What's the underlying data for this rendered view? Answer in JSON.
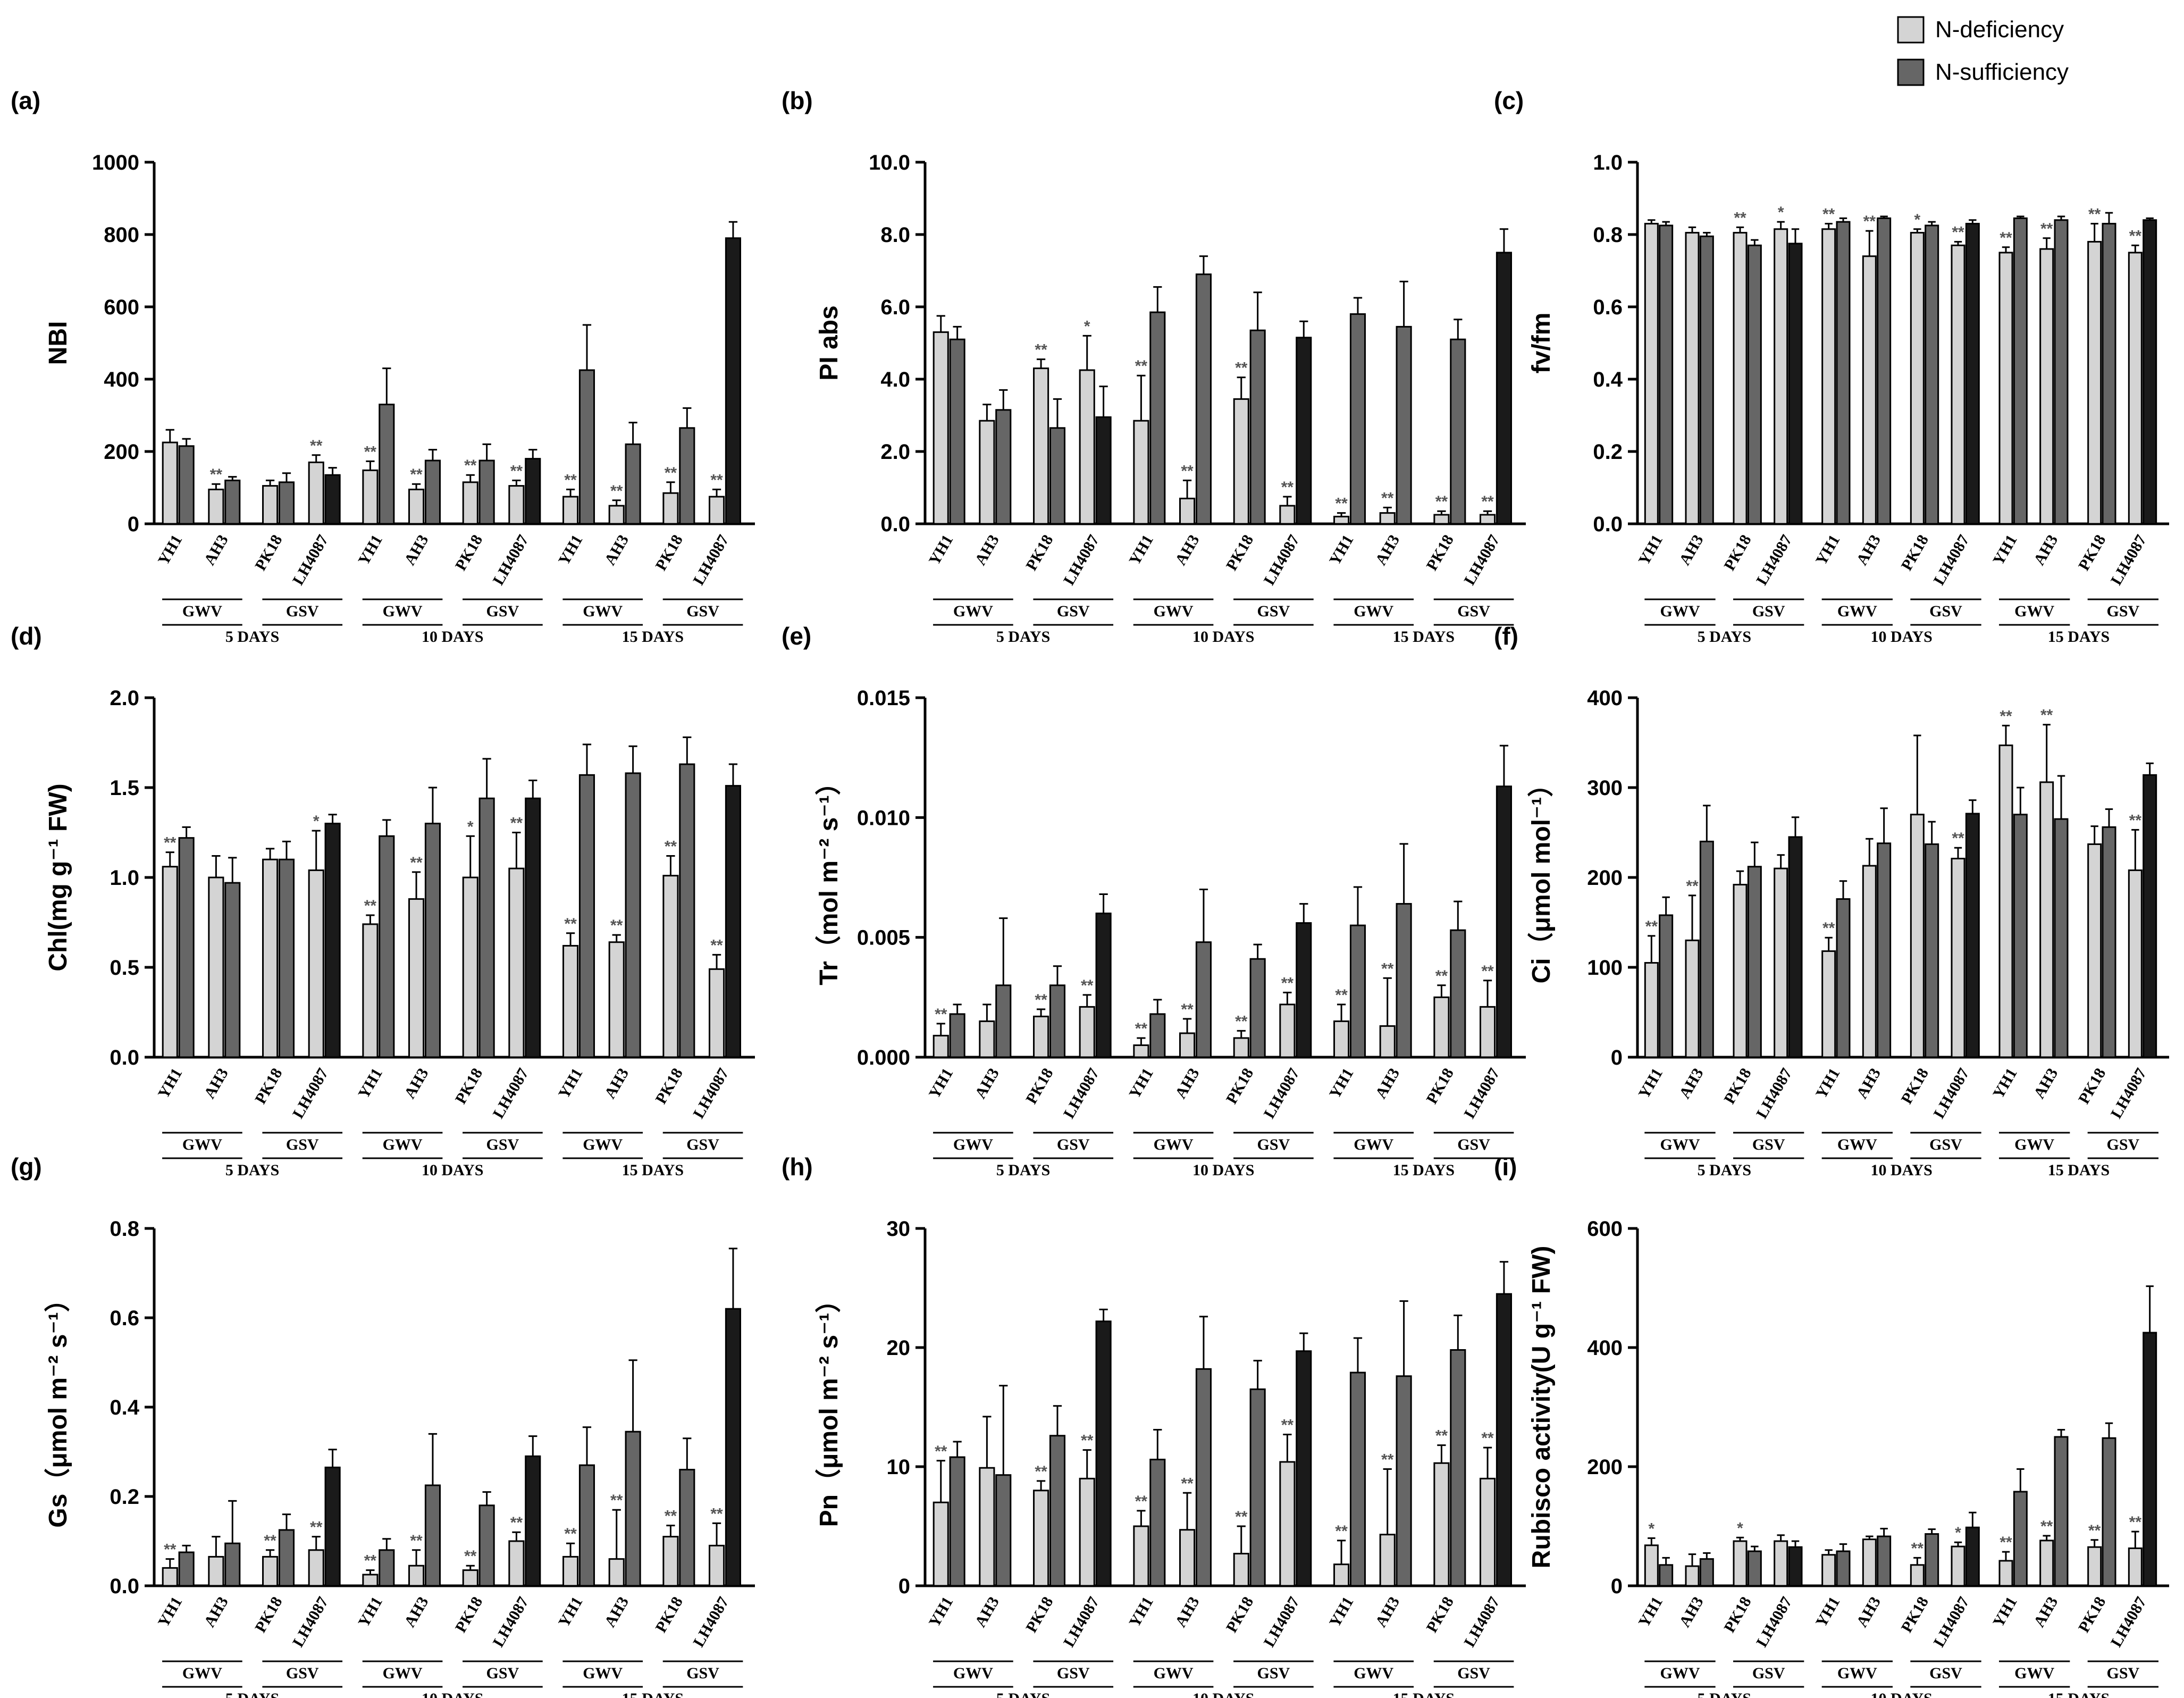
{
  "legend": {
    "n_deficiency": "N-deficiency",
    "n_sufficiency": "N-sufficiency"
  },
  "colors": {
    "n_deficiency": "#d4d4d4",
    "n_sufficiency": "#666666",
    "n_sufficiency_alt": "#1a1a1a"
  },
  "x_axis": {
    "varieties": [
      "YH1",
      "AH3",
      "PK18",
      "LH4087"
    ],
    "groups": [
      "GWV",
      "GSV"
    ],
    "periods": [
      "5 DAYS",
      "10 DAYS",
      "15 DAYS"
    ]
  },
  "chart_data": [
    {
      "panel": "(a)",
      "type": "bar",
      "ylabel": "NBI",
      "ylim": [
        0,
        1000
      ],
      "yticks": [
        "0",
        "200",
        "400",
        "600",
        "800",
        "1000"
      ],
      "n_deficiency": {
        "values": [
          [
            225,
            95,
            105,
            170
          ],
          [
            148,
            95,
            115,
            105
          ],
          [
            75,
            50,
            85,
            75
          ]
        ],
        "errors": [
          [
            35,
            15,
            15,
            20
          ],
          [
            25,
            15,
            20,
            15
          ],
          [
            20,
            15,
            30,
            20
          ]
        ],
        "sig": [
          [
            "",
            "**",
            "",
            "**"
          ],
          [
            "**",
            "**",
            "**",
            "**"
          ],
          [
            "**",
            "**",
            "**",
            "**"
          ]
        ]
      },
      "n_sufficiency": {
        "values": [
          [
            215,
            120,
            115,
            135
          ],
          [
            330,
            175,
            175,
            180
          ],
          [
            425,
            220,
            265,
            790
          ]
        ],
        "errors": [
          [
            20,
            10,
            25,
            20
          ],
          [
            100,
            30,
            45,
            25
          ],
          [
            125,
            60,
            55,
            45
          ]
        ]
      }
    },
    {
      "panel": "(b)",
      "type": "bar",
      "ylabel": "PI abs",
      "ylim": [
        0,
        10
      ],
      "yticks": [
        "0.0",
        "2.0",
        "4.0",
        "6.0",
        "8.0",
        "10.0"
      ],
      "n_deficiency": {
        "values": [
          [
            5.3,
            2.85,
            4.3,
            4.25
          ],
          [
            2.85,
            0.7,
            3.45,
            0.5
          ],
          [
            0.2,
            0.3,
            0.25,
            0.25
          ]
        ],
        "errors": [
          [
            0.45,
            0.45,
            0.25,
            0.95
          ],
          [
            1.25,
            0.5,
            0.6,
            0.25
          ],
          [
            0.1,
            0.15,
            0.1,
            0.1
          ]
        ],
        "sig": [
          [
            "",
            "",
            "**",
            "*"
          ],
          [
            "**",
            "**",
            "**",
            "**"
          ],
          [
            "**",
            "**",
            "**",
            "**"
          ]
        ]
      },
      "n_sufficiency": {
        "values": [
          [
            5.1,
            3.15,
            2.65,
            2.95
          ],
          [
            5.85,
            6.9,
            5.35,
            5.15
          ],
          [
            5.8,
            5.45,
            5.1,
            7.5
          ]
        ],
        "errors": [
          [
            0.35,
            0.55,
            0.8,
            0.85
          ],
          [
            0.7,
            0.5,
            1.05,
            0.45
          ],
          [
            0.45,
            1.25,
            0.55,
            0.65
          ]
        ]
      }
    },
    {
      "panel": "(c)",
      "type": "bar",
      "ylabel": "fv/fm",
      "ylim": [
        0,
        1
      ],
      "yticks": [
        "0.0",
        "0.2",
        "0.4",
        "0.6",
        "0.8",
        "1.0"
      ],
      "n_deficiency": {
        "values": [
          [
            0.83,
            0.805,
            0.805,
            0.815
          ],
          [
            0.815,
            0.74,
            0.805,
            0.77
          ],
          [
            0.75,
            0.76,
            0.78,
            0.75
          ]
        ],
        "errors": [
          [
            0.01,
            0.015,
            0.015,
            0.02
          ],
          [
            0.015,
            0.07,
            0.01,
            0.01
          ],
          [
            0.015,
            0.03,
            0.05,
            0.02
          ]
        ],
        "sig": [
          [
            "",
            "",
            "**",
            "*"
          ],
          [
            "**",
            "**",
            "*",
            "**"
          ],
          [
            "**",
            "**",
            "**",
            "**"
          ]
        ]
      },
      "n_sufficiency": {
        "values": [
          [
            0.825,
            0.795,
            0.77,
            0.775
          ],
          [
            0.835,
            0.845,
            0.825,
            0.83
          ],
          [
            0.845,
            0.84,
            0.83,
            0.84
          ]
        ],
        "errors": [
          [
            0.01,
            0.01,
            0.015,
            0.04
          ],
          [
            0.01,
            0.005,
            0.01,
            0.01
          ],
          [
            0.005,
            0.01,
            0.03,
            0.005
          ]
        ]
      }
    },
    {
      "panel": "(d)",
      "type": "bar",
      "ylabel": "Chl(mg g⁻¹ FW)",
      "ylim": [
        0,
        2
      ],
      "yticks": [
        "0.0",
        "0.5",
        "1.0",
        "1.5",
        "2.0"
      ],
      "n_deficiency": {
        "values": [
          [
            1.06,
            1.0,
            1.1,
            1.04
          ],
          [
            0.74,
            0.88,
            1.0,
            1.05
          ],
          [
            0.62,
            0.64,
            1.01,
            0.49
          ]
        ],
        "errors": [
          [
            0.08,
            0.12,
            0.06,
            0.22
          ],
          [
            0.05,
            0.15,
            0.23,
            0.2
          ],
          [
            0.07,
            0.04,
            0.11,
            0.08
          ]
        ],
        "sig": [
          [
            "**",
            "",
            "",
            "*"
          ],
          [
            "**",
            "**",
            "*",
            "**"
          ],
          [
            "**",
            "**",
            "**",
            "**"
          ]
        ]
      },
      "n_sufficiency": {
        "values": [
          [
            1.22,
            0.97,
            1.1,
            1.3
          ],
          [
            1.23,
            1.3,
            1.44,
            1.44
          ],
          [
            1.57,
            1.58,
            1.63,
            1.51
          ]
        ],
        "errors": [
          [
            0.06,
            0.14,
            0.1,
            0.05
          ],
          [
            0.09,
            0.2,
            0.22,
            0.1
          ],
          [
            0.17,
            0.15,
            0.15,
            0.12
          ]
        ]
      }
    },
    {
      "panel": "(e)",
      "type": "bar",
      "ylabel": "Tr（mol m⁻² s⁻¹）",
      "ylim": [
        0,
        0.015
      ],
      "yticks": [
        "0.000",
        "0.005",
        "0.010",
        "0.015"
      ],
      "n_deficiency": {
        "values": [
          [
            0.0009,
            0.0015,
            0.0017,
            0.0021
          ],
          [
            0.0005,
            0.001,
            0.0008,
            0.0022
          ],
          [
            0.0015,
            0.0013,
            0.0025,
            0.0021
          ]
        ],
        "errors": [
          [
            0.0005,
            0.0007,
            0.0003,
            0.0005
          ],
          [
            0.0003,
            0.0006,
            0.0003,
            0.0005
          ],
          [
            0.0007,
            0.002,
            0.0005,
            0.0011
          ]
        ],
        "sig": [
          [
            "**",
            "",
            "**",
            "**"
          ],
          [
            "**",
            "**",
            "**",
            "**"
          ],
          [
            "**",
            "**",
            "**",
            "**"
          ]
        ]
      },
      "n_sufficiency": {
        "values": [
          [
            0.0018,
            0.003,
            0.003,
            0.006
          ],
          [
            0.0018,
            0.0048,
            0.0041,
            0.0056
          ],
          [
            0.0055,
            0.0064,
            0.0053,
            0.0113
          ]
        ],
        "errors": [
          [
            0.0004,
            0.0028,
            0.0008,
            0.0008
          ],
          [
            0.0006,
            0.0022,
            0.0006,
            0.0008
          ],
          [
            0.0016,
            0.0025,
            0.0012,
            0.0017
          ]
        ]
      }
    },
    {
      "panel": "(f)",
      "type": "bar",
      "ylabel": "Ci（μmol mol⁻¹）",
      "ylim": [
        0,
        400
      ],
      "yticks": [
        "0",
        "100",
        "200",
        "300",
        "400"
      ],
      "n_deficiency": {
        "values": [
          [
            105,
            130,
            192,
            210
          ],
          [
            118,
            213,
            270,
            221
          ],
          [
            347,
            306,
            237,
            208
          ]
        ],
        "errors": [
          [
            30,
            50,
            15,
            15
          ],
          [
            15,
            30,
            88,
            12
          ],
          [
            22,
            64,
            20,
            45
          ]
        ],
        "sig": [
          [
            "**",
            "**",
            "",
            ""
          ],
          [
            "**",
            "",
            "",
            "**"
          ],
          [
            "**",
            "**",
            "",
            "**"
          ]
        ]
      },
      "n_sufficiency": {
        "values": [
          [
            158,
            240,
            212,
            245
          ],
          [
            176,
            238,
            237,
            271
          ],
          [
            270,
            265,
            256,
            314
          ]
        ],
        "errors": [
          [
            20,
            40,
            27,
            22
          ],
          [
            20,
            39,
            25,
            15
          ],
          [
            30,
            48,
            20,
            13
          ]
        ]
      }
    },
    {
      "panel": "(g)",
      "type": "bar",
      "ylabel": "Gs（μmol m⁻² s⁻¹）",
      "ylim": [
        0,
        0.8
      ],
      "yticks": [
        "0.0",
        "0.2",
        "0.4",
        "0.6",
        "0.8"
      ],
      "n_deficiency": {
        "values": [
          [
            0.04,
            0.065,
            0.065,
            0.08
          ],
          [
            0.025,
            0.045,
            0.035,
            0.1
          ],
          [
            0.065,
            0.06,
            0.11,
            0.09
          ]
        ],
        "errors": [
          [
            0.02,
            0.045,
            0.015,
            0.03
          ],
          [
            0.01,
            0.035,
            0.01,
            0.02
          ],
          [
            0.03,
            0.11,
            0.025,
            0.05
          ]
        ],
        "sig": [
          [
            "**",
            "",
            "**",
            "**"
          ],
          [
            "**",
            "**",
            "**",
            "**"
          ],
          [
            "**",
            "**",
            "**",
            "**"
          ]
        ]
      },
      "n_sufficiency": {
        "values": [
          [
            0.075,
            0.095,
            0.125,
            0.265
          ],
          [
            0.08,
            0.225,
            0.18,
            0.29
          ],
          [
            0.27,
            0.345,
            0.26,
            0.62
          ]
        ],
        "errors": [
          [
            0.015,
            0.095,
            0.035,
            0.04
          ],
          [
            0.025,
            0.115,
            0.03,
            0.045
          ],
          [
            0.085,
            0.16,
            0.07,
            0.135
          ]
        ]
      }
    },
    {
      "panel": "(h)",
      "type": "bar",
      "ylabel": "Pn（μmol m⁻² s⁻¹）",
      "ylim": [
        0,
        30
      ],
      "yticks": [
        "0",
        "10",
        "20",
        "30"
      ],
      "n_deficiency": {
        "values": [
          [
            7.0,
            9.9,
            8.0,
            9.0
          ],
          [
            5.0,
            4.7,
            2.7,
            10.4
          ],
          [
            1.8,
            4.3,
            10.3,
            9.0
          ]
        ],
        "errors": [
          [
            3.5,
            4.3,
            0.8,
            2.4
          ],
          [
            1.3,
            3.1,
            2.3,
            2.3
          ],
          [
            2.0,
            5.5,
            1.5,
            2.6
          ]
        ],
        "sig": [
          [
            "**",
            "",
            "**",
            "**"
          ],
          [
            "**",
            "**",
            "**",
            "**"
          ],
          [
            "**",
            "**",
            "**",
            "**"
          ]
        ]
      },
      "n_sufficiency": {
        "values": [
          [
            10.8,
            9.3,
            12.6,
            22.2
          ],
          [
            10.6,
            18.2,
            16.5,
            19.7
          ],
          [
            17.9,
            17.6,
            19.8,
            24.5
          ]
        ],
        "errors": [
          [
            1.3,
            7.5,
            2.5,
            1.0
          ],
          [
            2.5,
            4.4,
            2.4,
            1.5
          ],
          [
            2.9,
            6.3,
            2.9,
            2.7
          ]
        ]
      }
    },
    {
      "panel": "(i)",
      "type": "bar",
      "ylabel": "Rubisco activity(U g⁻¹ FW)",
      "ylim": [
        0,
        600
      ],
      "yticks": [
        "0",
        "200",
        "400",
        "600"
      ],
      "n_deficiency": {
        "values": [
          [
            68,
            33,
            75,
            75
          ],
          [
            52,
            78,
            35,
            66
          ],
          [
            42,
            76,
            65,
            63
          ]
        ],
        "errors": [
          [
            12,
            20,
            6,
            10
          ],
          [
            8,
            5,
            12,
            7
          ],
          [
            15,
            8,
            12,
            28
          ]
        ],
        "sig": [
          [
            "*",
            "",
            "*",
            ""
          ],
          [
            "",
            "",
            "**",
            "*"
          ],
          [
            "**",
            "**",
            "**",
            "**"
          ]
        ]
      },
      "n_sufficiency": {
        "values": [
          [
            35,
            45,
            58,
            65
          ],
          [
            58,
            83,
            87,
            98
          ],
          [
            158,
            250,
            248,
            425
          ]
        ],
        "errors": [
          [
            12,
            10,
            8,
            10
          ],
          [
            12,
            13,
            8,
            25
          ],
          [
            38,
            12,
            25,
            78
          ]
        ]
      }
    }
  ]
}
